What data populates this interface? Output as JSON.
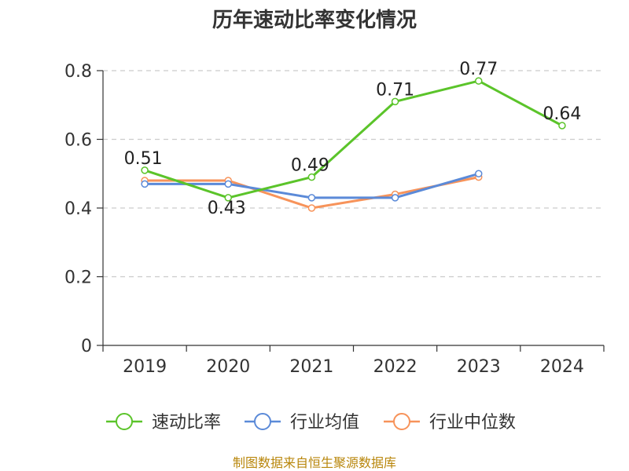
{
  "chart_data": {
    "type": "line",
    "title": "历年速动比率变化情况",
    "categories": [
      "2019",
      "2020",
      "2021",
      "2022",
      "2023",
      "2024"
    ],
    "ylim": [
      0,
      0.8
    ],
    "yticks": [
      "0",
      "0.2",
      "0.4",
      "0.6",
      "0.8"
    ],
    "grid": true,
    "legend_position": "bottom",
    "series": [
      {
        "name": "速动比率",
        "color": "#5bc42a",
        "values": [
          0.51,
          0.43,
          0.49,
          0.71,
          0.77,
          0.64
        ],
        "labels": [
          "0.51",
          "0.43",
          "0.49",
          "0.71",
          "0.77",
          "0.64"
        ]
      },
      {
        "name": "行业均值",
        "color": "#5b8ad8",
        "values": [
          0.47,
          0.47,
          0.43,
          0.43,
          0.5,
          null
        ]
      },
      {
        "name": "行业中位数",
        "color": "#f7935a",
        "values": [
          0.48,
          0.48,
          0.4,
          0.44,
          0.49,
          null
        ]
      }
    ]
  },
  "footer": {
    "source": "制图数据来自恒生聚源数据库"
  }
}
